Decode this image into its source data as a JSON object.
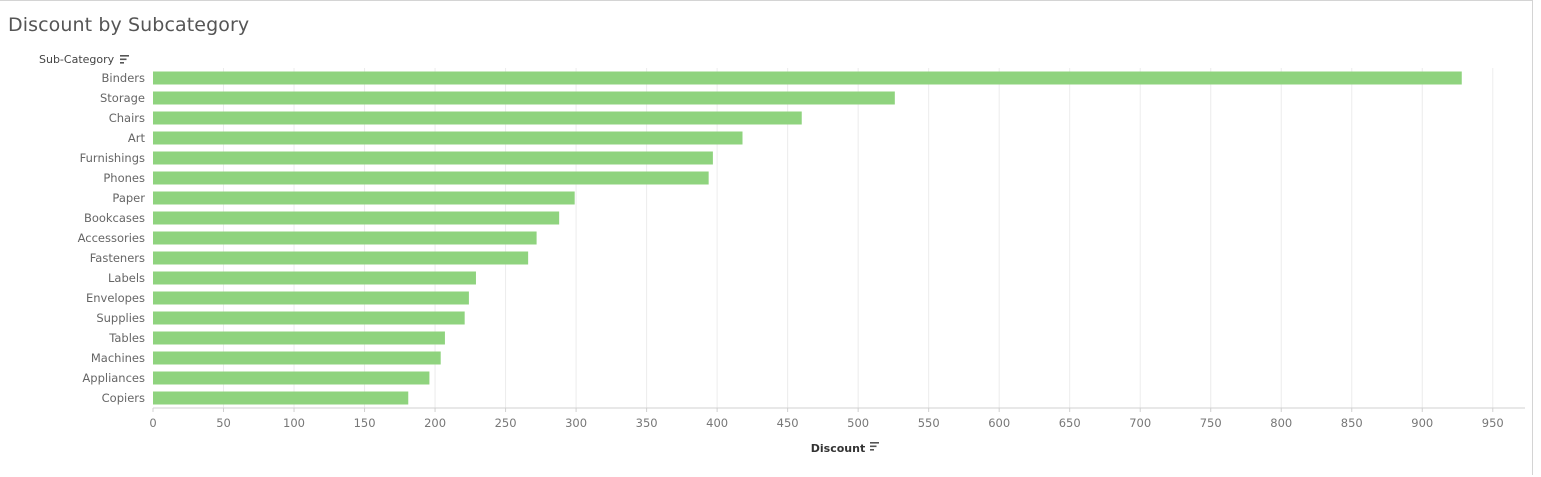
{
  "chart_data": {
    "type": "bar",
    "orientation": "horizontal",
    "title": "Discount by Subcategory",
    "ylabel": "Sub-Category",
    "xlabel": "Discount",
    "categories": [
      "Binders",
      "Storage",
      "Chairs",
      "Art",
      "Furnishings",
      "Phones",
      "Paper",
      "Bookcases",
      "Accessories",
      "Fasteners",
      "Labels",
      "Envelopes",
      "Supplies",
      "Tables",
      "Machines",
      "Appliances",
      "Copiers"
    ],
    "values": [
      928,
      526,
      460,
      418,
      397,
      394,
      299,
      288,
      272,
      266,
      229,
      224,
      221,
      207,
      204,
      196,
      181
    ],
    "xlim": [
      0,
      970
    ],
    "xticks": [
      0,
      50,
      100,
      150,
      200,
      250,
      300,
      350,
      400,
      450,
      500,
      550,
      600,
      650,
      700,
      750,
      800,
      850,
      900,
      950
    ],
    "grid": true,
    "bar_color": "#8fd37e",
    "gridline_color": "#ececec",
    "sort_icon": "sort-descending-icon"
  }
}
